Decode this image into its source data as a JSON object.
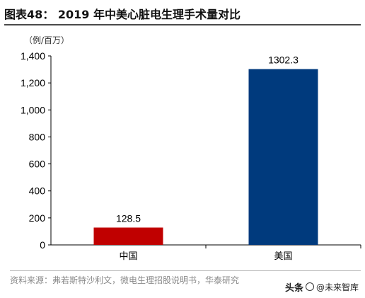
{
  "title": "图表48： 2019 年中美心脏电生理手术量对比",
  "unit_label": "（例/百万）",
  "source": "资料来源：弗若斯特沙利文，微电生理招股说明书，华泰研究",
  "watermark": {
    "brand": "头条",
    "handle": "@未来智库"
  },
  "chart_data": {
    "type": "bar",
    "title": "",
    "xlabel": "",
    "ylabel": "",
    "categories": [
      "中国",
      "美国"
    ],
    "values": [
      128.5,
      1302.3
    ],
    "value_labels": [
      "128.5",
      "1302.3"
    ],
    "bar_colors": [
      "#C00000",
      "#003A7D"
    ],
    "ylim": [
      0,
      1400
    ],
    "yticks": [
      0,
      200,
      400,
      600,
      800,
      1000,
      1200,
      1400
    ],
    "ytick_labels": [
      "0",
      "200",
      "400",
      "600",
      "800",
      "1,000",
      "1,200",
      "1,400"
    ],
    "grid": false,
    "legend": "none"
  }
}
